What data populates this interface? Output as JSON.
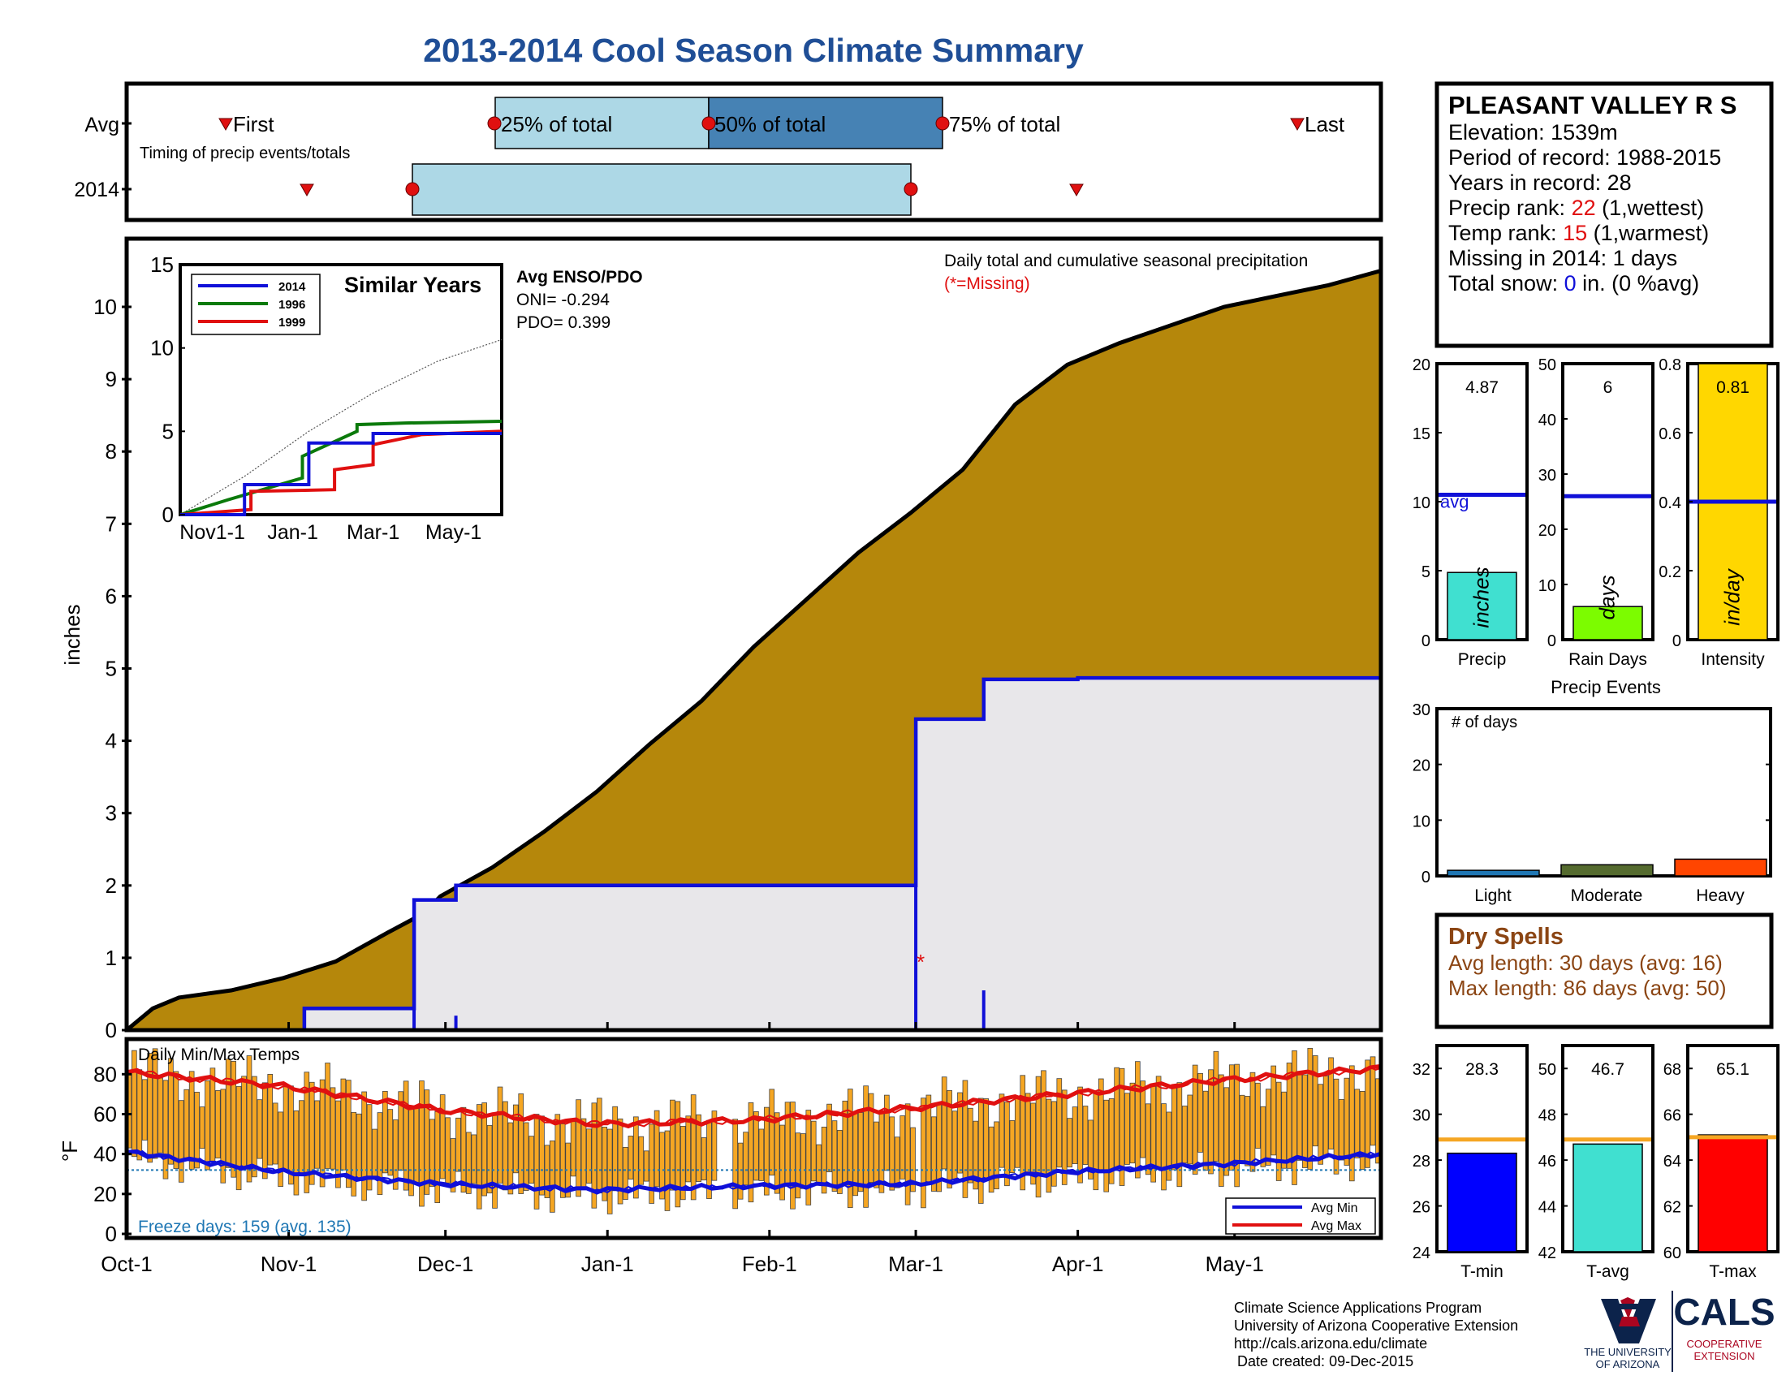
{
  "title": "2013-2014 Cool Season Climate Summary",
  "timing": {
    "row_avg": "Avg",
    "row_2014": "2014",
    "first": "First",
    "last": "Last",
    "p25": "25% of total",
    "p50": "50% of total",
    "p75": "75% of total",
    "note": "Timing of precip events/totals"
  },
  "main": {
    "ylabel": "inches",
    "daily_label": "Daily total and cumulative seasonal precipitation",
    "missing_label": "(*=Missing)",
    "enso_title": "Avg ENSO/PDO",
    "oni": "ONI= -0.294",
    "pdo": "PDO= 0.399",
    "x_ticks": [
      "Oct-1",
      "Nov-1",
      "Dec-1",
      "Jan-1",
      "Feb-1",
      "Mar-1",
      "Apr-1",
      "May-1"
    ],
    "y_ticks": [
      "0",
      "1",
      "2",
      "3",
      "4",
      "5",
      "6",
      "7",
      "8",
      "9",
      "10"
    ]
  },
  "similar": {
    "title": "Similar Years",
    "legend": [
      "2014",
      "1996",
      "1999"
    ],
    "x_ticks": [
      "Nov1-1",
      "Jan-1",
      "Mar-1",
      "May-1"
    ],
    "y_ticks": [
      "0",
      "5",
      "10",
      "15"
    ]
  },
  "temps": {
    "label": "Daily Min/Max Temps",
    "ylabel": "°F",
    "y_ticks": [
      "0",
      "20",
      "40",
      "60",
      "80"
    ],
    "freeze": "Freeze days: 159 (avg. 135)",
    "legend_min": "Avg Min",
    "legend_max": "Avg Max"
  },
  "station": {
    "name": "PLEASANT VALLEY R S",
    "elevation": "Elevation: 1539m",
    "period": "Period of record: 1988-2015",
    "years": "Years in record: 28",
    "precip_rank_label": "Precip rank: ",
    "precip_rank_value": "22",
    "precip_rank_suffix": " (1,wettest)",
    "temp_rank_label": "Temp rank: ",
    "temp_rank_value": "15",
    "temp_rank_suffix": " (1,warmest)",
    "missing": "Missing in 2014: 1 days",
    "snow_label": "Total snow: ",
    "snow_value": "0",
    "snow_suffix": " in. (0 %avg)"
  },
  "bars": {
    "precip": {
      "value_label": "4.87",
      "axis": "Precip",
      "unit": "inches",
      "avg_label": "avg",
      "ticks": [
        "0",
        "5",
        "10",
        "15",
        "20"
      ]
    },
    "rain_days": {
      "value_label": "6",
      "axis": "Rain Days",
      "unit": "days",
      "ticks": [
        "0",
        "10",
        "20",
        "30",
        "40",
        "50"
      ]
    },
    "intensity": {
      "value_label": "0.81",
      "axis": "Intensity",
      "unit": "in/day",
      "ticks": [
        "0",
        "0.2",
        "0.4",
        "0.6",
        "0.8"
      ]
    }
  },
  "events": {
    "title": "Precip Events",
    "label": "# of days",
    "categories": [
      "Light",
      "Moderate",
      "Heavy"
    ],
    "ticks": [
      "0",
      "10",
      "20",
      "30"
    ]
  },
  "dry_spells": {
    "title": "Dry Spells",
    "avg_length": "Avg length: 30 days (avg: 16)",
    "max_length": "Max length: 86 days (avg: 50)"
  },
  "temp_bars": {
    "tmin": {
      "value_label": "28.3",
      "axis": "T-min",
      "ticks": [
        "24",
        "26",
        "28",
        "30",
        "32"
      ]
    },
    "tavg": {
      "value_label": "46.7",
      "axis": "T-avg",
      "ticks": [
        "42",
        "44",
        "46",
        "48",
        "50"
      ]
    },
    "tmax": {
      "value_label": "65.1",
      "axis": "T-max",
      "ticks": [
        "60",
        "62",
        "64",
        "66",
        "68"
      ]
    }
  },
  "footer": {
    "line1": "Climate Science Applications Program",
    "line2": "University of Arizona Cooperative Extension",
    "line3": "http://cals.arizona.edu/climate",
    "line4": "Date created: 09-Dec-2015",
    "logo_ua_line1": "THE UNIVERSITY",
    "logo_ua_line2": "OF ARIZONA",
    "logo_cals": "CALS",
    "logo_coop1": "COOPERATIVE",
    "logo_coop2": "EXTENSION"
  },
  "colors": {
    "title": "#1f4e96",
    "avg_fill": "#b5870b",
    "season_fill": "#e8e7ea",
    "blue": "#1010d8",
    "red": "#e01010",
    "green": "#0b7a0b",
    "orange_bar": "#f5a623",
    "light_blue": "#add8e6",
    "steel_blue": "#4682b4",
    "dry_brown": "#8b4513"
  },
  "chart_data": [
    {
      "type": "area",
      "name": "cumulative precipitation",
      "ylabel": "inches",
      "ylim": [
        0,
        11
      ],
      "x_dates": [
        "Oct-1",
        "Nov-1",
        "Dec-1",
        "Jan-1",
        "Feb-1",
        "Mar-1",
        "Apr-1",
        "May-1"
      ],
      "series": [
        {
          "name": "average cumulative",
          "x_days": [
            0,
            5,
            10,
            20,
            30,
            40,
            50,
            57,
            60,
            70,
            80,
            90,
            100,
            110,
            120,
            130,
            140,
            150,
            160,
            170,
            180,
            190,
            200,
            210,
            220,
            230,
            240
          ],
          "values": [
            0,
            0.3,
            0.45,
            0.55,
            0.72,
            0.95,
            1.35,
            1.62,
            1.85,
            2.25,
            2.75,
            3.3,
            3.95,
            4.55,
            5.3,
            5.95,
            6.6,
            7.15,
            7.75,
            8.65,
            9.2,
            9.5,
            9.75,
            10.0,
            10.15,
            10.3,
            10.5
          ]
        },
        {
          "name": "2014 cumulative",
          "x_days": [
            0,
            34,
            34,
            55,
            55,
            63,
            63,
            151,
            151,
            164,
            164,
            182,
            182,
            240
          ],
          "values": [
            0,
            0,
            0.3,
            0.3,
            1.8,
            1.8,
            2.0,
            2.0,
            4.3,
            4.3,
            4.85,
            4.85,
            4.87,
            4.87
          ]
        },
        {
          "name": "2014 daily",
          "x_days": [
            34,
            55,
            63,
            151,
            164
          ],
          "values": [
            0.3,
            1.5,
            0.2,
            2.25,
            0.55
          ]
        }
      ],
      "missing_day": 151
    },
    {
      "type": "line",
      "name": "Similar Years",
      "xlim_months": [
        "Nov1-1",
        "Jan-1",
        "Mar-1",
        "May-1"
      ],
      "ylim": [
        0,
        15
      ],
      "series": [
        {
          "name": "2014",
          "x_frac": [
            0,
            0.2,
            0.2,
            0.4,
            0.4,
            0.6,
            0.6,
            1.0
          ],
          "values": [
            0,
            0,
            1.8,
            1.8,
            4.3,
            4.3,
            4.87,
            4.87
          ]
        },
        {
          "name": "1996",
          "x_frac": [
            0,
            0.15,
            0.15,
            0.38,
            0.38,
            0.55,
            0.55,
            0.7,
            1.0
          ],
          "values": [
            0,
            0.9,
            0.9,
            2.2,
            3.5,
            5.0,
            5.4,
            5.5,
            5.6
          ]
        },
        {
          "name": "1999",
          "x_frac": [
            0,
            0.22,
            0.22,
            0.48,
            0.48,
            0.6,
            0.6,
            0.75,
            1.0
          ],
          "values": [
            0,
            0.3,
            1.4,
            1.5,
            2.7,
            3.0,
            4.2,
            4.8,
            5.0
          ]
        },
        {
          "name": "average",
          "x_frac": [
            0,
            0.2,
            0.4,
            0.6,
            0.8,
            1.0
          ],
          "values": [
            0,
            2.3,
            5.0,
            7.3,
            9.2,
            10.5
          ]
        }
      ]
    },
    {
      "type": "line",
      "name": "Daily Min/Max Temps",
      "ylabel": "°F",
      "ylim": [
        -5,
        95
      ],
      "series": [
        {
          "name": "Avg Max",
          "x_days": [
            0,
            30,
            60,
            90,
            120,
            150,
            180,
            210,
            240
          ],
          "values": [
            81,
            74,
            62,
            55,
            57,
            63,
            70,
            77,
            83
          ]
        },
        {
          "name": "Avg Min",
          "x_days": [
            0,
            30,
            60,
            90,
            120,
            150,
            180,
            210,
            240
          ],
          "values": [
            41,
            31,
            25,
            22,
            24,
            25,
            31,
            35,
            40
          ]
        }
      ]
    },
    {
      "type": "bar",
      "name": "Precip",
      "ylim": [
        0,
        20
      ],
      "values": [
        4.87
      ],
      "avg": 10.5
    },
    {
      "type": "bar",
      "name": "Rain Days",
      "ylim": [
        0,
        50
      ],
      "values": [
        6
      ],
      "avg": 26
    },
    {
      "type": "bar",
      "name": "Intensity",
      "ylim": [
        0,
        0.8
      ],
      "values": [
        0.81
      ],
      "avg": 0.4
    },
    {
      "type": "bar",
      "name": "Precip Events",
      "categories": [
        "Light",
        "Moderate",
        "Heavy"
      ],
      "ylim": [
        0,
        30
      ],
      "values": [
        1,
        2,
        3
      ]
    },
    {
      "type": "bar",
      "name": "T-min",
      "ylim": [
        24,
        33
      ],
      "values": [
        28.3
      ],
      "avg": 28.9
    },
    {
      "type": "bar",
      "name": "T-avg",
      "ylim": [
        42,
        51
      ],
      "values": [
        46.7
      ],
      "avg": 46.9
    },
    {
      "type": "bar",
      "name": "T-max",
      "ylim": [
        60,
        69
      ],
      "values": [
        65.1
      ],
      "avg": 65.0
    }
  ]
}
